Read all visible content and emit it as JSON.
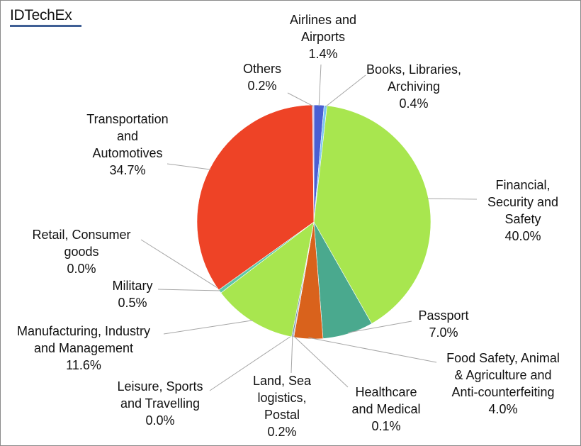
{
  "logo": "IDTechEx",
  "chart_data": {
    "type": "pie",
    "start_angle": "top",
    "direction": "clockwise",
    "slices": [
      {
        "label": [
          "Airlines and",
          "Airports"
        ],
        "value": 1.4,
        "display": "1.4%",
        "color": "#4a5fd3"
      },
      {
        "label": [
          "Books, Libraries,",
          "Archiving"
        ],
        "value": 0.4,
        "display": "0.4%",
        "color": "#7cc8f0"
      },
      {
        "label": [
          "Financial,",
          "Security and",
          "Safety"
        ],
        "value": 40.0,
        "display": "40.0%",
        "color": "#a8e64f"
      },
      {
        "label": [
          "Passport"
        ],
        "value": 7.0,
        "display": "7.0%",
        "color": "#4aa98e"
      },
      {
        "label": [
          "Food Safety, Animal",
          "& Agriculture  and",
          "Anti-counterfeiting"
        ],
        "value": 4.0,
        "display": "4.0%",
        "color": "#d9621c"
      },
      {
        "label": [
          "Healthcare",
          "and Medical"
        ],
        "value": 0.1,
        "display": "0.1%",
        "color": "#8a6fb0"
      },
      {
        "label": [
          "Land, Sea",
          "logistics,",
          "Postal"
        ],
        "value": 0.2,
        "display": "0.2%",
        "color": "#6d8fa8"
      },
      {
        "label": [
          "Leisure, Sports",
          "and Travelling"
        ],
        "value": 0.0,
        "display": "0.0%",
        "color": "#c0c0c0"
      },
      {
        "label": [
          "Manufacturing,  Industry",
          "and Management"
        ],
        "value": 11.6,
        "display": "11.6%",
        "color": "#a8e64f"
      },
      {
        "label": [
          "Military"
        ],
        "value": 0.5,
        "display": "0.5%",
        "color": "#5fc6a8"
      },
      {
        "label": [
          "Retail, Consumer",
          "goods"
        ],
        "value": 0.0,
        "display": "0.0%",
        "color": "#9ab0c8"
      },
      {
        "label": [
          "Transportation",
          "and",
          "Automotives"
        ],
        "value": 34.7,
        "display": "34.7%",
        "color": "#ee4326"
      },
      {
        "label": [
          "Others"
        ],
        "value": 0.2,
        "display": "0.2%",
        "color": "#c6b8e0"
      }
    ]
  }
}
